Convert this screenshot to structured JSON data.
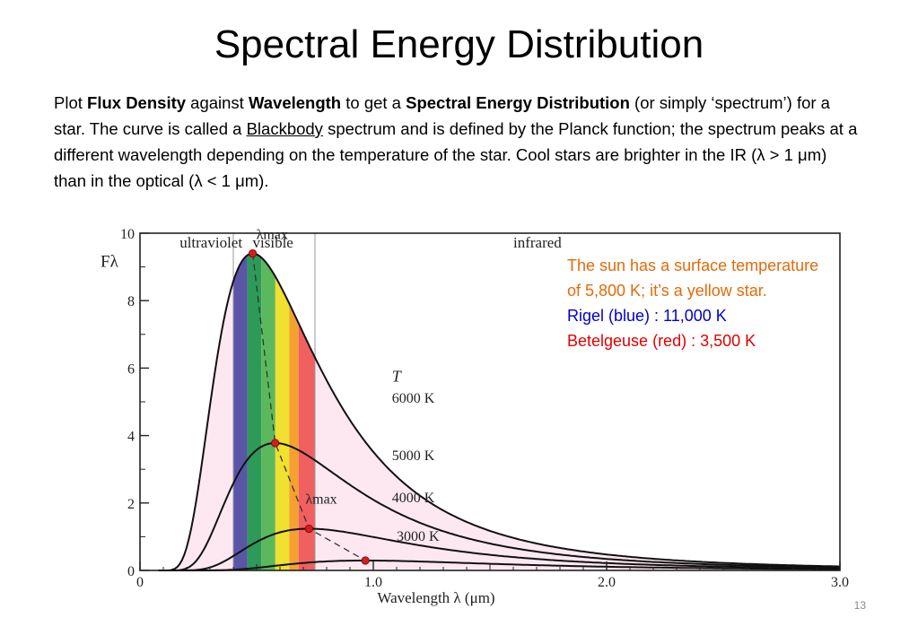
{
  "slide": {
    "title": "Spectral Energy Distribution",
    "body": {
      "p1": "Plot ",
      "b1": "Flux Density",
      "p2": " against ",
      "b2": "Wavelength",
      "p3": " to get a ",
      "b3": "Spectral Energy Distribution",
      "p4": " (or simply ‘spectrum’) for a star.  The curve is called a ",
      "u1": "Blackbody",
      "p5": " spectrum and is defined by the Planck function; the spectrum peaks at a different wavelength depending on the temperature of the star.  Cool stars are brighter in the IR (λ > 1 μm) than in the optical (λ < 1 μm)."
    },
    "caption": {
      "sun": "The sun has a surface temperature of 5,800 K; it’s a yellow star.",
      "rigel": "Rigel (blue) : 11,000 K",
      "betelgeuse": "Betelgeuse (red) : 3,500 K"
    },
    "slide_number": "13"
  },
  "chart_data": {
    "type": "line",
    "xlabel": "Wavelength  λ  (μm)",
    "ylabel": "Fλ",
    "xlim": [
      0,
      3.0
    ],
    "ylim": [
      0,
      10
    ],
    "x_ticks": [
      "0",
      "1.0",
      "2.0",
      "3.0"
    ],
    "y_ticks": [
      "0",
      "2",
      "4",
      "6",
      "8",
      "10"
    ],
    "regions": [
      "ultraviolet",
      "visible",
      "infrared"
    ],
    "legend_title": "T",
    "series": [
      {
        "name": "6000 K",
        "temperature": 6000
      },
      {
        "name": "5000 K",
        "temperature": 5000
      },
      {
        "name": "4000 K",
        "temperature": 4000
      },
      {
        "name": "3000 K",
        "temperature": 3000
      }
    ],
    "peak_label": "λmax",
    "visible_band_colors": [
      "#5b55a8",
      "#2d9a5a",
      "#5cb85c",
      "#f0e030",
      "#f5a030",
      "#f06060"
    ]
  }
}
